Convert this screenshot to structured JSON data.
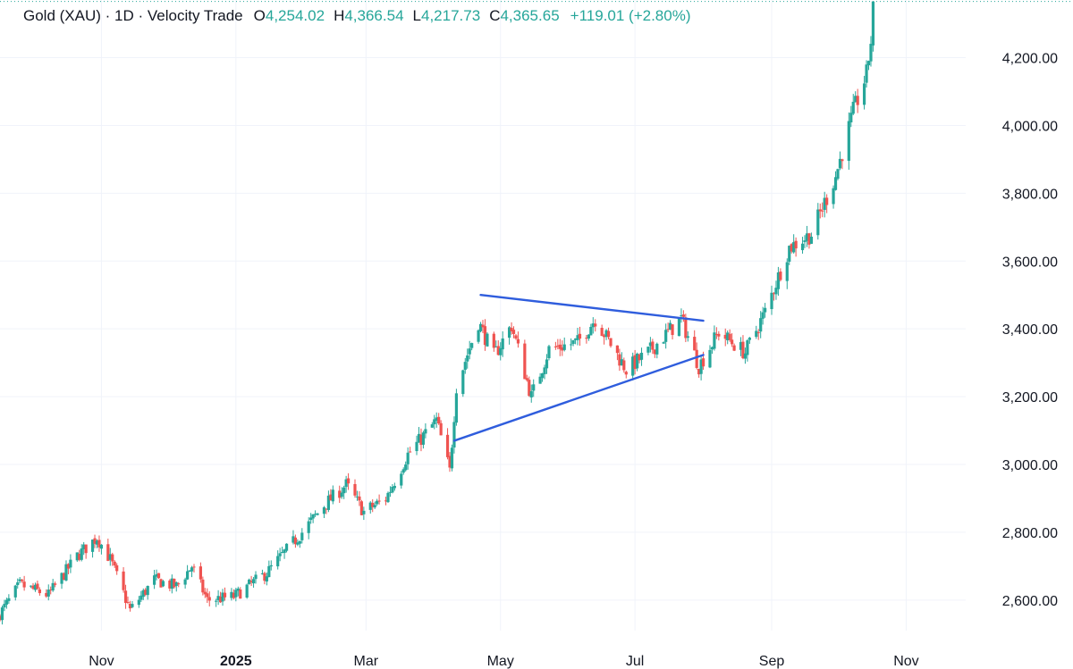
{
  "legend": {
    "title": "Gold (XAU) · 1D · Velocity Trade",
    "open_key": "O",
    "open": "4,254.02",
    "high_key": "H",
    "high": "4,366.54",
    "low_key": "L",
    "low": "4,217.73",
    "close_key": "C",
    "close": "4,365.65",
    "change": "+119.01 (+2.80%)"
  },
  "colors": {
    "up": "#26a69a",
    "down": "#ef5350",
    "trendline": "#2f5ddd",
    "grid": "#f0f3fa",
    "price_line": "#26a69a"
  },
  "chart_data": {
    "type": "candlestick",
    "x_tick_labels": [
      {
        "label": "Nov",
        "date": "2024-11-01",
        "bold": false
      },
      {
        "label": "2025",
        "date": "2025-01-01",
        "bold": true
      },
      {
        "label": "Mar",
        "date": "2025-03-01",
        "bold": false
      },
      {
        "label": "May",
        "date": "2025-05-01",
        "bold": false
      },
      {
        "label": "Jul",
        "date": "2025-07-01",
        "bold": false
      },
      {
        "label": "Sep",
        "date": "2025-09-01",
        "bold": false
      },
      {
        "label": "Nov",
        "date": "2025-11-01",
        "bold": false
      }
    ],
    "y_ticks": [
      {
        "value": 2600,
        "label": "2,600.00"
      },
      {
        "value": 2800,
        "label": "2,800.00"
      },
      {
        "value": 3000,
        "label": "3,000.00"
      },
      {
        "value": 3200,
        "label": "3,200.00"
      },
      {
        "value": 3400,
        "label": "3,400.00"
      },
      {
        "value": 3600,
        "label": "3,600.00"
      },
      {
        "value": 3800,
        "label": "3,800.00"
      },
      {
        "value": 4000,
        "label": "4,000.00"
      },
      {
        "value": 4200,
        "label": "4,200.00"
      }
    ],
    "ylim": [
      2510,
      4370
    ],
    "xlim": [
      "2024-09-16",
      "2025-11-28"
    ],
    "close_anchors": [
      [
        "2024-09-16",
        2560
      ],
      [
        "2024-09-25",
        2645
      ],
      [
        "2024-10-08",
        2615
      ],
      [
        "2024-10-21",
        2730
      ],
      [
        "2024-10-30",
        2785
      ],
      [
        "2024-11-05",
        2720
      ],
      [
        "2024-11-14",
        2570
      ],
      [
        "2024-11-25",
        2660
      ],
      [
        "2024-12-05",
        2640
      ],
      [
        "2024-12-12",
        2700
      ],
      [
        "2024-12-19",
        2600
      ],
      [
        "2024-12-31",
        2610
      ],
      [
        "2025-01-15",
        2680
      ],
      [
        "2025-01-31",
        2800
      ],
      [
        "2025-02-10",
        2880
      ],
      [
        "2025-02-20",
        2940
      ],
      [
        "2025-02-28",
        2860
      ],
      [
        "2025-03-10",
        2900
      ],
      [
        "2025-03-20",
        3030
      ],
      [
        "2025-04-02",
        3130
      ],
      [
        "2025-04-08",
        2980
      ],
      [
        "2025-04-11",
        3230
      ],
      [
        "2025-04-21",
        3420
      ],
      [
        "2025-04-28",
        3320
      ],
      [
        "2025-05-06",
        3410
      ],
      [
        "2025-05-15",
        3200
      ],
      [
        "2025-05-23",
        3340
      ],
      [
        "2025-06-05",
        3360
      ],
      [
        "2025-06-13",
        3430
      ],
      [
        "2025-06-27",
        3280
      ],
      [
        "2025-07-07",
        3330
      ],
      [
        "2025-07-22",
        3430
      ],
      [
        "2025-07-30",
        3290
      ],
      [
        "2025-08-08",
        3390
      ],
      [
        "2025-08-20",
        3330
      ],
      [
        "2025-08-29",
        3450
      ],
      [
        "2025-09-09",
        3640
      ],
      [
        "2025-09-19",
        3680
      ],
      [
        "2025-09-30",
        3850
      ],
      [
        "2025-10-08",
        4040
      ],
      [
        "2025-10-14",
        4150
      ],
      [
        "2025-10-16",
        4250
      ],
      [
        "2025-10-17",
        4365.65
      ]
    ],
    "trendlines": [
      {
        "from": [
          "2025-04-22",
          3500
        ],
        "to": [
          "2025-08-01",
          3424
        ]
      },
      {
        "from": [
          "2025-04-10",
          3070
        ],
        "to": [
          "2025-08-01",
          3323
        ]
      }
    ],
    "last_close": 4365.65
  }
}
